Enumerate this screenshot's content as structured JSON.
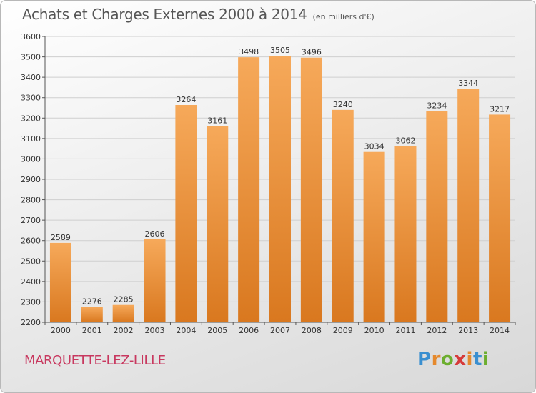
{
  "header": {
    "title": "Achats et Charges Externes 2000 à 2014",
    "subtitle": "(en milliers d'€)"
  },
  "footer": {
    "commune": "MARQUETTE-LEZ-LILLE",
    "logo_letters": [
      {
        "ch": "P",
        "color": "#3a8fd0"
      },
      {
        "ch": "r",
        "color": "#e5892d"
      },
      {
        "ch": "o",
        "color": "#6cae2f"
      },
      {
        "ch": "x",
        "color": "#d63a3a"
      },
      {
        "ch": "i",
        "color": "#e5892d"
      },
      {
        "ch": "t",
        "color": "#3a8fd0"
      },
      {
        "ch": "i",
        "color": "#6cae2f"
      }
    ]
  },
  "colors": {
    "bar_light": "#f6a95a",
    "bar_dark": "#d9781f",
    "grid": "#cfcfcf",
    "axis": "#555555"
  },
  "chart_data": {
    "type": "bar",
    "title": "Achats et Charges Externes 2000 à 2014",
    "subtitle": "(en milliers d'€)",
    "categories": [
      "2000",
      "2001",
      "2002",
      "2003",
      "2004",
      "2005",
      "2006",
      "2007",
      "2008",
      "2009",
      "2010",
      "2011",
      "2012",
      "2013",
      "2014"
    ],
    "values": [
      2589,
      2276,
      2285,
      2606,
      3264,
      3161,
      3498,
      3505,
      3496,
      3240,
      3034,
      3062,
      3234,
      3344,
      3217
    ],
    "ylim": [
      2200,
      3600
    ],
    "yticks": [
      2200,
      2300,
      2400,
      2500,
      2600,
      2700,
      2800,
      2900,
      3000,
      3100,
      3200,
      3300,
      3400,
      3500,
      3600
    ],
    "grid": true,
    "data_labels": true
  }
}
